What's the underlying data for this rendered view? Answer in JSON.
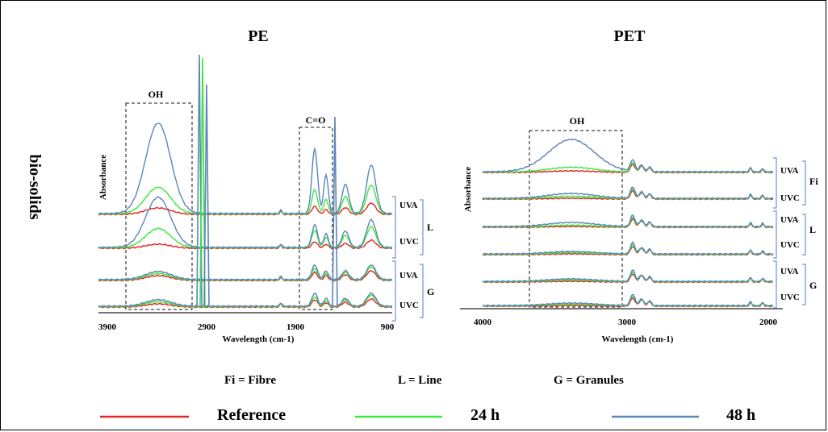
{
  "row_label": "bio-solids",
  "panels": [
    {
      "title": "PE",
      "ylabel": "Absorbance",
      "xlabel": "Wavelength (cm-1)",
      "x_ticks": [
        "3900",
        "2900",
        "1900",
        "900"
      ],
      "annotations": [
        "OH",
        "C=O"
      ],
      "groups": [
        {
          "name": "L",
          "sub": [
            "UVA",
            "UVC"
          ]
        },
        {
          "name": "G",
          "sub": [
            "UVA",
            "UVC"
          ]
        }
      ]
    },
    {
      "title": "PET",
      "ylabel": "Absorbance",
      "xlabel": "Wavelength (cm-1)",
      "x_ticks": [
        "4000",
        "3000",
        "2000"
      ],
      "annotations": [
        "OH"
      ],
      "groups": [
        {
          "name": "Fi",
          "sub": [
            "UVA",
            "UVC"
          ]
        },
        {
          "name": "L",
          "sub": [
            "UVA",
            "UVC"
          ]
        },
        {
          "name": "G",
          "sub": [
            "UVA",
            "UVC"
          ]
        }
      ]
    }
  ],
  "abbrev": [
    "Fi = Fibre",
    "L = Line",
    "G = Granules"
  ],
  "legend": [
    {
      "label": "Reference",
      "color": "#e32626"
    },
    {
      "label": "24 h",
      "color": "#3ce83c"
    },
    {
      "label": "48 h",
      "color": "#5b86b8"
    }
  ],
  "colors": {
    "reference": "#e32626",
    "h24": "#3ce83c",
    "h48": "#5b86b8",
    "bracket": "#6f95c6"
  }
}
